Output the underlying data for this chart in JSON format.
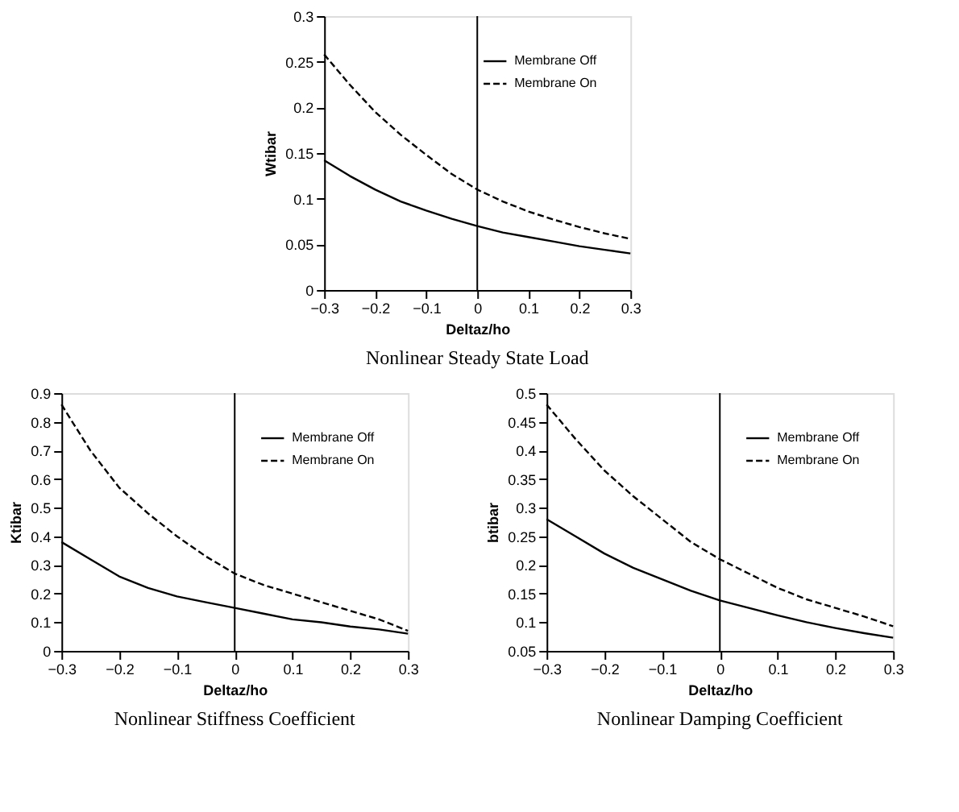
{
  "chart_data": [
    {
      "type": "line",
      "title": "Nonlinear Steady State Load",
      "xlabel": "Deltaz/ho",
      "ylabel": "Wtibar",
      "x": [
        -0.3,
        -0.25,
        -0.2,
        -0.15,
        -0.1,
        -0.05,
        0,
        0.05,
        0.1,
        0.15,
        0.2,
        0.25,
        0.3
      ],
      "series": [
        {
          "name": "Membrane Off",
          "color": "#000000",
          "line_style": "solid",
          "values": [
            0.142,
            0.125,
            0.11,
            0.097,
            0.087,
            0.078,
            0.07,
            0.063,
            0.058,
            0.053,
            0.048,
            0.044,
            0.04
          ]
        },
        {
          "name": "Membrane On",
          "color": "#000000",
          "line_style": "dashed",
          "values": [
            0.258,
            0.225,
            0.195,
            0.17,
            0.148,
            0.127,
            0.11,
            0.097,
            0.086,
            0.077,
            0.069,
            0.062,
            0.056
          ]
        }
      ],
      "xlim": [
        -0.3,
        0.3
      ],
      "xticks": [
        -0.3,
        -0.2,
        -0.1,
        0,
        0.1,
        0.2,
        0.3
      ],
      "ylim": [
        0,
        0.3
      ],
      "yticks": [
        0,
        0.05,
        0.1,
        0.15,
        0.2,
        0.25,
        0.3
      ],
      "ref_lines": [
        {
          "axis": "x",
          "value": 0,
          "color": "#000000"
        }
      ],
      "grid": false,
      "legend": "top right"
    },
    {
      "type": "line",
      "title": "Nonlinear Stiffness Coefficient",
      "xlabel": "Deltaz/ho",
      "ylabel": "Ktibar",
      "x": [
        -0.3,
        -0.25,
        -0.2,
        -0.15,
        -0.1,
        -0.05,
        0,
        0.05,
        0.1,
        0.15,
        0.2,
        0.25,
        0.3
      ],
      "series": [
        {
          "name": "Membrane Off",
          "color": "#000000",
          "line_style": "solid",
          "values": [
            0.38,
            0.32,
            0.26,
            0.22,
            0.19,
            0.17,
            0.15,
            0.13,
            0.11,
            0.1,
            0.085,
            0.075,
            0.06
          ]
        },
        {
          "name": "Membrane On",
          "color": "#000000",
          "line_style": "dashed",
          "values": [
            0.86,
            0.7,
            0.57,
            0.48,
            0.4,
            0.33,
            0.27,
            0.23,
            0.2,
            0.17,
            0.14,
            0.11,
            0.07
          ]
        }
      ],
      "xlim": [
        -0.3,
        0.3
      ],
      "xticks": [
        -0.3,
        -0.2,
        -0.1,
        0,
        0.1,
        0.2,
        0.3
      ],
      "ylim": [
        0,
        0.9
      ],
      "yticks": [
        0,
        0.1,
        0.2,
        0.3,
        0.4,
        0.5,
        0.6,
        0.7,
        0.8,
        0.9
      ],
      "ref_lines": [
        {
          "axis": "x",
          "value": 0,
          "color": "#000000"
        }
      ],
      "grid": false,
      "legend": "top right"
    },
    {
      "type": "line",
      "title": "Nonlinear Damping Coefficient",
      "xlabel": "Deltaz/ho",
      "ylabel": "btibar",
      "x": [
        -0.3,
        -0.25,
        -0.2,
        -0.15,
        -0.1,
        -0.05,
        0,
        0.05,
        0.1,
        0.15,
        0.2,
        0.25,
        0.3
      ],
      "series": [
        {
          "name": "Membrane Off",
          "color": "#000000",
          "line_style": "solid",
          "values": [
            0.28,
            0.25,
            0.22,
            0.195,
            0.175,
            0.155,
            0.138,
            0.125,
            0.112,
            0.1,
            0.09,
            0.081,
            0.073
          ]
        },
        {
          "name": "Membrane On",
          "color": "#000000",
          "line_style": "dashed",
          "values": [
            0.48,
            0.42,
            0.365,
            0.32,
            0.28,
            0.24,
            0.21,
            0.185,
            0.16,
            0.14,
            0.125,
            0.11,
            0.093
          ]
        }
      ],
      "xlim": [
        -0.3,
        0.3
      ],
      "xticks": [
        -0.3,
        -0.2,
        -0.1,
        0,
        0.1,
        0.2,
        0.3
      ],
      "ylim": [
        0.05,
        0.5
      ],
      "yticks": [
        0.05,
        0.1,
        0.15,
        0.2,
        0.25,
        0.3,
        0.35,
        0.4,
        0.45,
        0.5
      ],
      "ref_lines": [
        {
          "axis": "x",
          "value": 0,
          "color": "#000000"
        }
      ],
      "grid": false,
      "legend": "top right"
    }
  ]
}
